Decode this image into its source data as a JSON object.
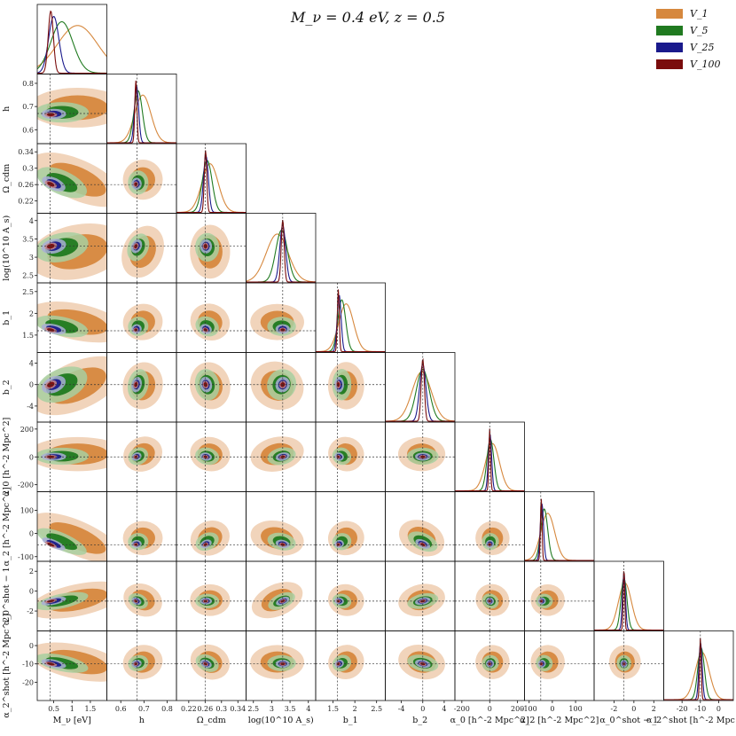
{
  "title": "M_ν = 0.4 eV, z = 0.5",
  "legend": [
    {
      "label": "V_1",
      "color": "#d6883e"
    },
    {
      "label": "V_5",
      "color": "#207a20"
    },
    {
      "label": "V_25",
      "color": "#1a1a8c"
    },
    {
      "label": "V_100",
      "color": "#7a0c0c"
    }
  ],
  "chart_data": {
    "type": "corner",
    "params": [
      {
        "label": "M_ν [eV]",
        "true": 0.4,
        "range": [
          0.05,
          1.95
        ],
        "ticks": [
          0.5,
          1.0,
          1.5
        ]
      },
      {
        "label": "h",
        "true": 0.67,
        "range": [
          0.54,
          0.84
        ],
        "ticks": [
          0.6,
          0.7,
          0.8
        ]
      },
      {
        "label": "Ω_cdm",
        "true": 0.26,
        "range": [
          0.19,
          0.36
        ],
        "ticks": [
          0.22,
          0.26,
          0.3,
          0.34
        ]
      },
      {
        "label": "log(10^10 A_s)",
        "true": 3.3,
        "range": [
          2.3,
          4.2
        ],
        "ticks": [
          2.5,
          3.0,
          3.5,
          4.0
        ]
      },
      {
        "label": "b_1",
        "true": 1.6,
        "range": [
          1.1,
          2.7
        ],
        "ticks": [
          1.5,
          2.0,
          2.5
        ]
      },
      {
        "label": "b_2",
        "true": 0,
        "range": [
          -7,
          6
        ],
        "ticks": [
          -4,
          0,
          4
        ]
      },
      {
        "label": "α_0 [h^-2 Mpc^2]",
        "true": 0,
        "range": [
          -250,
          250
        ],
        "ticks": [
          -200,
          0,
          200
        ]
      },
      {
        "label": "α_2 [h^-2 Mpc^2]",
        "true": -50,
        "range": [
          -120,
          180
        ],
        "ticks": [
          -100,
          0,
          100
        ]
      },
      {
        "label": "α_0^shot − 1",
        "true": -1,
        "range": [
          -4,
          3
        ],
        "ticks": [
          -2,
          0,
          2
        ]
      },
      {
        "label": "α_2^shot [h^-2 Mpc^2]",
        "true": -10,
        "range": [
          -30,
          8
        ],
        "ticks": [
          -20,
          -10,
          0
        ]
      }
    ],
    "series": [
      {
        "name": "V_1",
        "color": "#d6883e"
      },
      {
        "name": "V_5",
        "color": "#207a20"
      },
      {
        "name": "V_25",
        "color": "#1a1a8c"
      },
      {
        "name": "V_100",
        "color": "#7a0c0c"
      }
    ],
    "posteriors": {
      "V_1": {
        "mean": [
          1.15,
          0.695,
          0.272,
          3.15,
          1.8,
          -0.2,
          20,
          -20,
          -0.9,
          -9.0
        ],
        "sd": [
          0.55,
          0.035,
          0.02,
          0.3,
          0.17,
          1.8,
          50,
          30,
          0.65,
          3.8
        ]
      },
      "V_5": {
        "mean": [
          0.72,
          0.675,
          0.265,
          3.27,
          1.7,
          0.0,
          5,
          -35,
          -1.0,
          -9.6
        ],
        "sd": [
          0.3,
          0.018,
          0.012,
          0.16,
          0.09,
          1.2,
          25,
          15,
          0.3,
          1.8
        ]
      },
      "V_25": {
        "mean": [
          0.5,
          0.668,
          0.262,
          3.3,
          1.64,
          0.0,
          2,
          -45,
          -1.0,
          -9.9
        ],
        "sd": [
          0.14,
          0.009,
          0.006,
          0.08,
          0.045,
          0.6,
          12,
          7,
          0.15,
          0.9
        ]
      },
      "V_100": {
        "mean": [
          0.42,
          0.665,
          0.261,
          3.3,
          1.62,
          0.0,
          0,
          -48,
          -1.0,
          -10.0
        ],
        "sd": [
          0.07,
          0.0045,
          0.003,
          0.04,
          0.022,
          0.3,
          6,
          3.5,
          0.075,
          0.45
        ]
      }
    }
  }
}
